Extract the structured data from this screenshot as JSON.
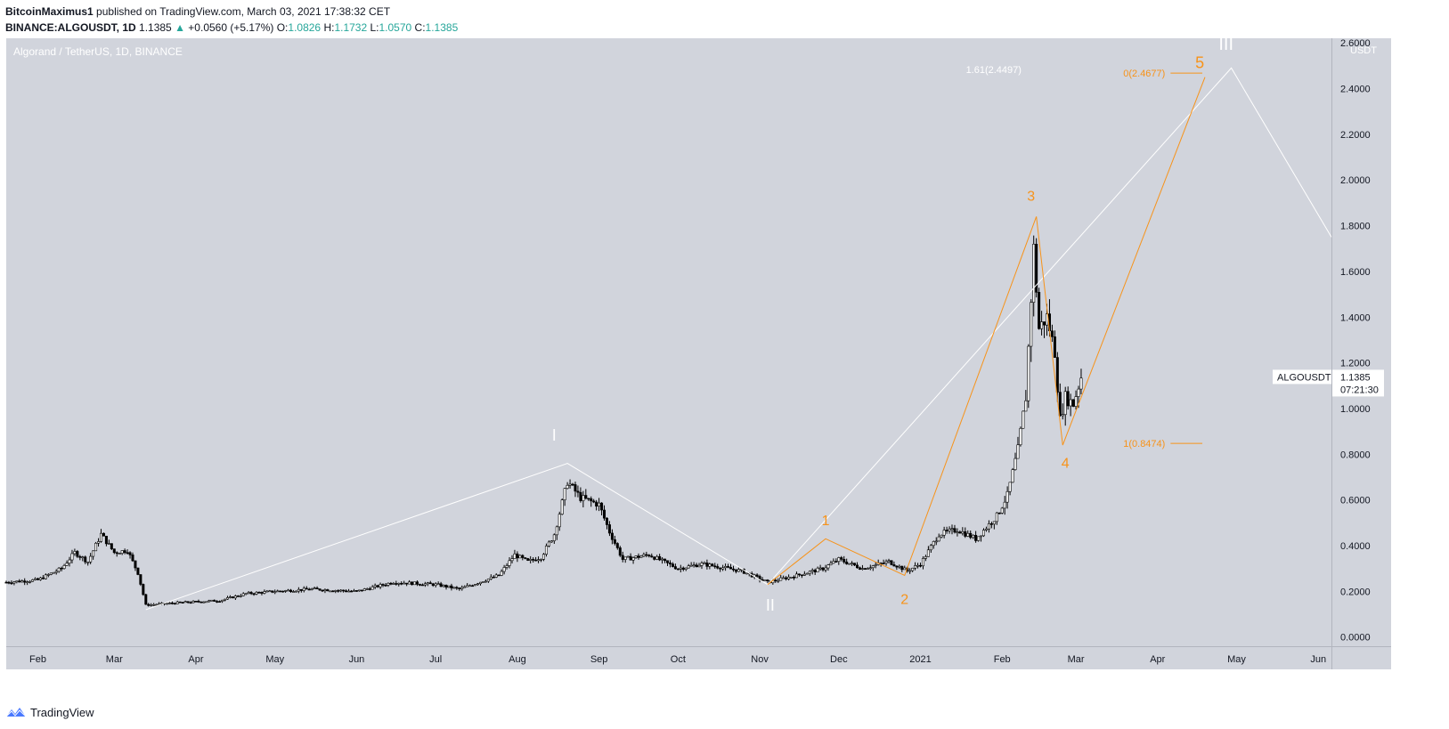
{
  "header": {
    "author": "BitcoinMaximus1",
    "published_text": "published on TradingView.com, March 03, 2021 17:38:32 CET"
  },
  "quote": {
    "symbol": "BINANCE:ALGOUSDT, 1D",
    "last": "1.1385",
    "change": "+0.0560 (+5.17%)",
    "change_arrow": "▲",
    "open_label": "O:",
    "open": "1.0826",
    "high_label": "H:",
    "high": "1.1732",
    "low_label": "L:",
    "low": "1.0570",
    "close_label": "C:",
    "close": "1.1385"
  },
  "footer": {
    "brand": "TradingView",
    "logo_icon": "tradingview-logo-icon"
  },
  "chart_data": {
    "type": "candlestick",
    "title": "Algorand / TetherUS, 1D, BINANCE",
    "currency_label": "USDT",
    "ylim": [
      -0.04,
      2.62
    ],
    "y_ticks": [
      "0.0000",
      "0.2000",
      "0.4000",
      "0.6000",
      "0.8000",
      "1.0000",
      "1.2000",
      "1.4000",
      "1.6000",
      "1.8000",
      "2.0000",
      "2.2000",
      "2.4000",
      "2.6000"
    ],
    "x_range": [
      "2020-01-20",
      "2021-06-06"
    ],
    "x_ticks": [
      {
        "date": "2020-02-01",
        "label": "Feb"
      },
      {
        "date": "2020-03-01",
        "label": "Mar"
      },
      {
        "date": "2020-04-01",
        "label": "Apr"
      },
      {
        "date": "2020-05-01",
        "label": "May"
      },
      {
        "date": "2020-06-01",
        "label": "Jun"
      },
      {
        "date": "2020-07-01",
        "label": "Jul"
      },
      {
        "date": "2020-08-01",
        "label": "Aug"
      },
      {
        "date": "2020-09-01",
        "label": "Sep"
      },
      {
        "date": "2020-10-01",
        "label": "Oct"
      },
      {
        "date": "2020-11-01",
        "label": "Nov"
      },
      {
        "date": "2020-12-01",
        "label": "Dec"
      },
      {
        "date": "2021-01-01",
        "label": "2021"
      },
      {
        "date": "2021-02-01",
        "label": "Feb"
      },
      {
        "date": "2021-03-01",
        "label": "Mar"
      },
      {
        "date": "2021-04-01",
        "label": "Apr"
      },
      {
        "date": "2021-05-01",
        "label": "May"
      },
      {
        "date": "2021-06-01",
        "label": "Jun"
      }
    ],
    "price_path": [
      [
        "2020-01-20",
        0.24
      ],
      [
        "2020-02-01",
        0.25
      ],
      [
        "2020-02-10",
        0.3
      ],
      [
        "2020-02-15",
        0.37
      ],
      [
        "2020-02-20",
        0.33
      ],
      [
        "2020-02-25",
        0.45
      ],
      [
        "2020-03-01",
        0.37
      ],
      [
        "2020-03-06",
        0.38
      ],
      [
        "2020-03-10",
        0.28
      ],
      [
        "2020-03-13",
        0.14
      ],
      [
        "2020-03-25",
        0.15
      ],
      [
        "2020-04-10",
        0.16
      ],
      [
        "2020-04-20",
        0.19
      ],
      [
        "2020-05-01",
        0.2
      ],
      [
        "2020-05-15",
        0.21
      ],
      [
        "2020-06-01",
        0.2
      ],
      [
        "2020-06-15",
        0.24
      ],
      [
        "2020-07-01",
        0.23
      ],
      [
        "2020-07-10",
        0.21
      ],
      [
        "2020-07-25",
        0.27
      ],
      [
        "2020-07-31",
        0.36
      ],
      [
        "2020-08-05",
        0.33
      ],
      [
        "2020-08-10",
        0.35
      ],
      [
        "2020-08-15",
        0.45
      ],
      [
        "2020-08-20",
        0.68
      ],
      [
        "2020-08-25",
        0.61
      ],
      [
        "2020-09-01",
        0.58
      ],
      [
        "2020-09-05",
        0.46
      ],
      [
        "2020-09-10",
        0.34
      ],
      [
        "2020-09-20",
        0.36
      ],
      [
        "2020-10-01",
        0.3
      ],
      [
        "2020-10-10",
        0.32
      ],
      [
        "2020-10-25",
        0.29
      ],
      [
        "2020-11-04",
        0.24
      ],
      [
        "2020-11-15",
        0.27
      ],
      [
        "2020-11-25",
        0.3
      ],
      [
        "2020-12-01",
        0.34
      ],
      [
        "2020-12-10",
        0.3
      ],
      [
        "2020-12-20",
        0.33
      ],
      [
        "2020-12-27",
        0.29
      ],
      [
        "2021-01-01",
        0.32
      ],
      [
        "2021-01-08",
        0.45
      ],
      [
        "2021-01-15",
        0.47
      ],
      [
        "2021-01-22",
        0.43
      ],
      [
        "2021-01-30",
        0.53
      ],
      [
        "2021-02-03",
        0.62
      ],
      [
        "2021-02-07",
        0.82
      ],
      [
        "2021-02-10",
        1.05
      ],
      [
        "2021-02-13",
        1.7
      ],
      [
        "2021-02-15",
        1.35
      ],
      [
        "2021-02-18",
        1.4
      ],
      [
        "2021-02-21",
        1.25
      ],
      [
        "2021-02-23",
        0.95
      ],
      [
        "2021-02-25",
        1.05
      ],
      [
        "2021-02-28",
        1.02
      ],
      [
        "2021-03-03",
        1.1385
      ]
    ],
    "candles_note": "",
    "last_price_label": {
      "symbol": "ALGOUSDT",
      "value": "1.1385",
      "countdown": "07:21:30"
    },
    "wave_labels": [
      {
        "text": "I",
        "date": "2020-08-15",
        "price": 0.86,
        "color": "#ffffff",
        "size": 18
      },
      {
        "text": "II",
        "date": "2020-11-05",
        "price": 0.115,
        "color": "#ffffff",
        "size": 18
      },
      {
        "text": "III",
        "date": "2021-04-27",
        "price": 2.57,
        "color": "#ffffff",
        "size": 20
      },
      {
        "text": "1",
        "date": "2020-11-26",
        "price": 0.49,
        "color": "#f7931a",
        "size": 16
      },
      {
        "text": "2",
        "date": "2020-12-26",
        "price": 0.145,
        "color": "#f7931a",
        "size": 16
      },
      {
        "text": "3",
        "date": "2021-02-12",
        "price": 1.91,
        "color": "#f7931a",
        "size": 16
      },
      {
        "text": "4",
        "date": "2021-02-25",
        "price": 0.74,
        "color": "#f7931a",
        "size": 16
      },
      {
        "text": "5",
        "date": "2021-04-17",
        "price": 2.49,
        "color": "#f7931a",
        "size": 18
      }
    ],
    "white_wave_path": [
      [
        "2020-03-13",
        0.12
      ],
      [
        "2020-08-20",
        0.76
      ],
      [
        "2020-11-04",
        0.23
      ],
      [
        "2021-04-29",
        2.49
      ],
      [
        "2021-06-06",
        1.75
      ]
    ],
    "orange_wave_path": [
      [
        "2020-11-04",
        0.23
      ],
      [
        "2020-11-26",
        0.43
      ],
      [
        "2020-12-26",
        0.27
      ],
      [
        "2021-02-14",
        1.84
      ],
      [
        "2021-02-24",
        0.84
      ],
      [
        "2021-04-19",
        2.45
      ]
    ],
    "fib_levels": [
      {
        "label": "0(2.4677)",
        "price": 2.4677,
        "from": "2021-03-18",
        "to": "2021-04-18",
        "color": "#f7931a"
      },
      {
        "label": "1(0.8474)",
        "price": 0.8474,
        "from": "2021-03-18",
        "to": "2021-04-18",
        "color": "#f7931a"
      }
    ],
    "fib_ext_label": {
      "label": "1.61(2.4497)",
      "date": "2020-12-26",
      "price": 2.43,
      "color": "#ffffff"
    },
    "colors": {
      "background": "#d1d4dc",
      "candle": "#000000",
      "axis_text": "#131722",
      "orange": "#f7931a",
      "white": "#ffffff"
    }
  }
}
